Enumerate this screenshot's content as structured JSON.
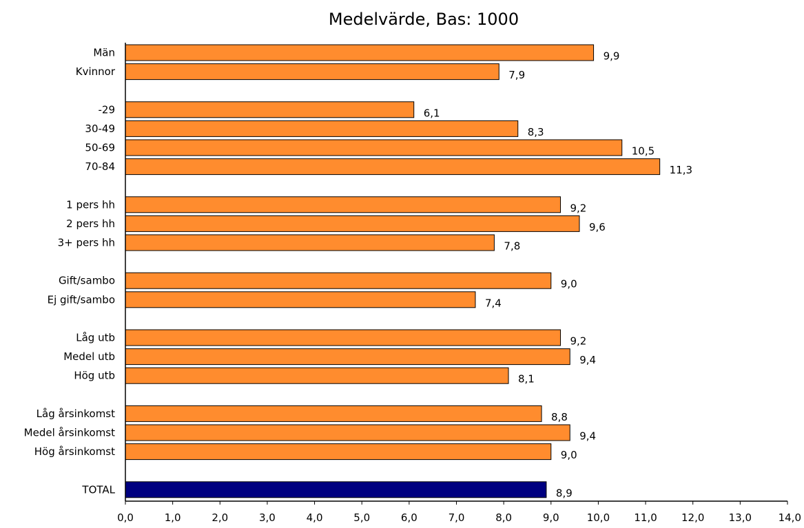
{
  "chart_data": {
    "type": "bar",
    "orientation": "horizontal",
    "title": "Medelvärde, Bas: 1000",
    "xlabel": "",
    "ylabel": "",
    "xlim": [
      0,
      14
    ],
    "grid": false,
    "legend": "none",
    "colors": {
      "default": "#ff8c2e",
      "total": "#000080",
      "border": "#000000"
    },
    "bars": [
      {
        "label": "Män",
        "value": 9.9,
        "value_label": "9,9",
        "row": 0
      },
      {
        "label": "Kvinnor",
        "value": 7.9,
        "value_label": "7,9",
        "row": 1
      },
      {
        "label": "-29",
        "value": 6.1,
        "value_label": "6,1",
        "row": 3
      },
      {
        "label": "30-49",
        "value": 8.3,
        "value_label": "8,3",
        "row": 4
      },
      {
        "label": "50-69",
        "value": 10.5,
        "value_label": "10,5",
        "row": 5
      },
      {
        "label": "70-84",
        "value": 11.3,
        "value_label": "11,3",
        "row": 6
      },
      {
        "label": "1 pers hh",
        "value": 9.2,
        "value_label": "9,2",
        "row": 8
      },
      {
        "label": "2 pers hh",
        "value": 9.6,
        "value_label": "9,6",
        "row": 9
      },
      {
        "label": "3+ pers hh",
        "value": 7.8,
        "value_label": "7,8",
        "row": 10
      },
      {
        "label": "Gift/sambo",
        "value": 9.0,
        "value_label": "9,0",
        "row": 12
      },
      {
        "label": "Ej gift/sambo",
        "value": 7.4,
        "value_label": "7,4",
        "row": 13
      },
      {
        "label": "Låg utb",
        "value": 9.2,
        "value_label": "9,2",
        "row": 15
      },
      {
        "label": "Medel utb",
        "value": 9.4,
        "value_label": "9,4",
        "row": 16
      },
      {
        "label": "Hög utb",
        "value": 8.1,
        "value_label": "8,1",
        "row": 17
      },
      {
        "label": "Låg årsinkomst",
        "value": 8.8,
        "value_label": "8,8",
        "row": 19
      },
      {
        "label": "Medel årsinkomst",
        "value": 9.4,
        "value_label": "9,4",
        "row": 20
      },
      {
        "label": "Hög årsinkomst",
        "value": 9.0,
        "value_label": "9,0",
        "row": 21
      },
      {
        "label": "TOTAL",
        "value": 8.9,
        "value_label": "8,9",
        "row": 23,
        "highlight": true
      }
    ],
    "x_ticks": [
      {
        "value": 0,
        "label": "0,0"
      },
      {
        "value": 1,
        "label": "1,0"
      },
      {
        "value": 2,
        "label": "2,0"
      },
      {
        "value": 3,
        "label": "3,0"
      },
      {
        "value": 4,
        "label": "4,0"
      },
      {
        "value": 5,
        "label": "5,0"
      },
      {
        "value": 6,
        "label": "6,0"
      },
      {
        "value": 7,
        "label": "7,0"
      },
      {
        "value": 8,
        "label": "8,0"
      },
      {
        "value": 9,
        "label": "9,0"
      },
      {
        "value": 10,
        "label": "10,0"
      },
      {
        "value": 11,
        "label": "11,0"
      },
      {
        "value": 12,
        "label": "12,0"
      },
      {
        "value": 13,
        "label": "13,0"
      },
      {
        "value": 14,
        "label": "14,0"
      }
    ]
  }
}
